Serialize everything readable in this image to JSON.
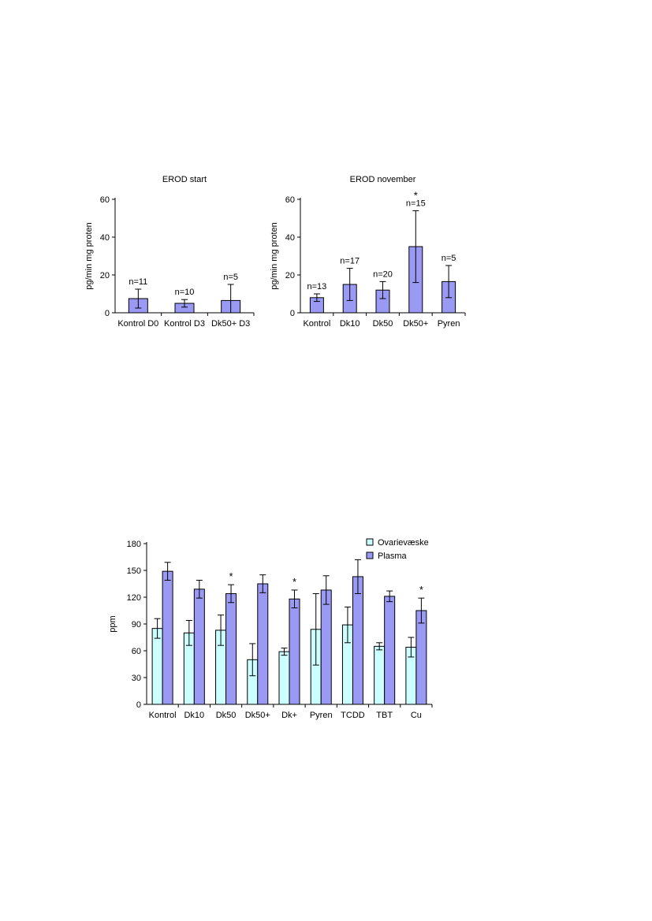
{
  "colors": {
    "bar_primary": "#9a9af5",
    "bar_secondary": "#ccffff",
    "axis": "#000000",
    "error_bar": "#000000"
  },
  "chart_data": [
    {
      "type": "bar",
      "title": "EROD start",
      "xlabel": "",
      "ylabel": "pg/min mg proten",
      "ylim": [
        0,
        60
      ],
      "yticks": [
        0,
        20,
        40,
        60
      ],
      "grid": false,
      "categories": [
        "Kontrol D0",
        "Kontrol D3",
        "Dk50+ D3"
      ],
      "values": [
        7.5,
        5,
        6.5
      ],
      "error": [
        5,
        2,
        8.5
      ],
      "annotations": [
        "n=11",
        "n=10",
        "n=5"
      ],
      "significance": [
        "",
        "",
        ""
      ]
    },
    {
      "type": "bar",
      "title": "EROD november",
      "xlabel": "",
      "ylabel": "pg/min mg proten",
      "ylim": [
        0,
        60
      ],
      "yticks": [
        0,
        20,
        40,
        60
      ],
      "grid": false,
      "categories": [
        "Kontrol",
        "Dk10",
        "Dk50",
        "Dk50+",
        "Pyren"
      ],
      "values": [
        8,
        15,
        12,
        35,
        16.5
      ],
      "error": [
        2,
        8.5,
        4.5,
        19,
        8.5
      ],
      "annotations": [
        "n=13",
        "n=17",
        "n=20",
        "n=15",
        "n=5"
      ],
      "significance": [
        "",
        "",
        "",
        "*",
        ""
      ]
    },
    {
      "type": "bar",
      "title": "",
      "xlabel": "",
      "ylabel": "ppm",
      "ylim": [
        0,
        180
      ],
      "yticks": [
        0,
        30,
        60,
        90,
        120,
        150,
        180
      ],
      "grid": false,
      "legend_position": "top-right",
      "categories": [
        "Kontrol",
        "Dk10",
        "Dk50",
        "Dk50+",
        "Dk+",
        "Pyren",
        "TCDD",
        "TBT",
        "Cu"
      ],
      "series": [
        {
          "name": "Ovarievæske",
          "color": "#ccffff",
          "values": [
            85,
            80,
            83,
            50,
            59,
            84,
            89,
            65,
            64
          ],
          "error": [
            11,
            14,
            17,
            18,
            4,
            40,
            20,
            4,
            11
          ]
        },
        {
          "name": "Plasma",
          "color": "#9a9af5",
          "values": [
            149,
            129,
            124,
            135,
            118,
            128,
            143,
            121,
            105
          ],
          "error": [
            10,
            10,
            10,
            10,
            10,
            16,
            19,
            6,
            14
          ]
        }
      ],
      "significance": [
        "",
        "",
        "*",
        "",
        "*",
        "",
        "",
        "",
        "*"
      ]
    }
  ]
}
